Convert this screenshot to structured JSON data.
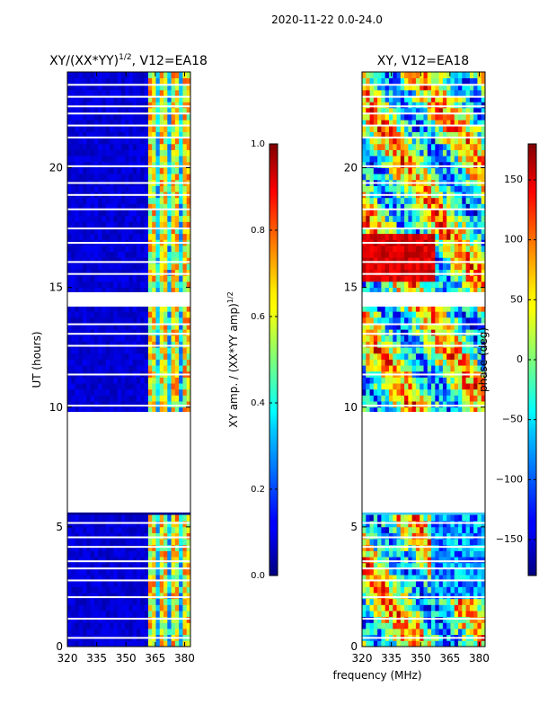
{
  "suptitle": "2020-11-22 0.0-24.0",
  "chart_data": [
    {
      "type": "heatmap",
      "id": "amp",
      "title_main": "XY/(XX*YY)",
      "title_sup": "1/2",
      "title_tail": ", V12=EA18",
      "ylabel": "UT (hours)",
      "xlabel": "",
      "xlim": [
        320,
        383
      ],
      "ylim": [
        0,
        24
      ],
      "xticks": [
        320,
        335,
        350,
        365,
        380
      ],
      "yticks": [
        0,
        5,
        10,
        15,
        20
      ],
      "data_gaps_hours": [
        [
          5.6,
          9.8
        ],
        [
          14.2,
          14.8
        ]
      ],
      "colorbar": {
        "label_main": "XY amp. / (XX*YY amp)",
        "label_sup": "1/2",
        "range": [
          0.0,
          1.0
        ],
        "ticks": [
          "0.0",
          "0.2",
          "0.4",
          "0.6",
          "0.8",
          "1.0"
        ],
        "colormap": "jet"
      }
    },
    {
      "type": "heatmap",
      "id": "phase",
      "title_main": "XY, V12=EA18",
      "ylabel": "",
      "xlabel": "frequency (MHz)",
      "xlim": [
        320,
        383
      ],
      "ylim": [
        0,
        24
      ],
      "xticks": [
        320,
        335,
        350,
        365,
        380
      ],
      "yticks": [
        0,
        5,
        10,
        15,
        20
      ],
      "data_gaps_hours": [
        [
          5.6,
          9.8
        ],
        [
          14.2,
          14.8
        ]
      ],
      "colorbar": {
        "label": "phase (deg)",
        "range": [
          -180,
          180
        ],
        "ticks": [
          "150",
          "100",
          "50",
          "0",
          "−50",
          "−100",
          "−150"
        ],
        "colormap": "jet"
      }
    }
  ]
}
